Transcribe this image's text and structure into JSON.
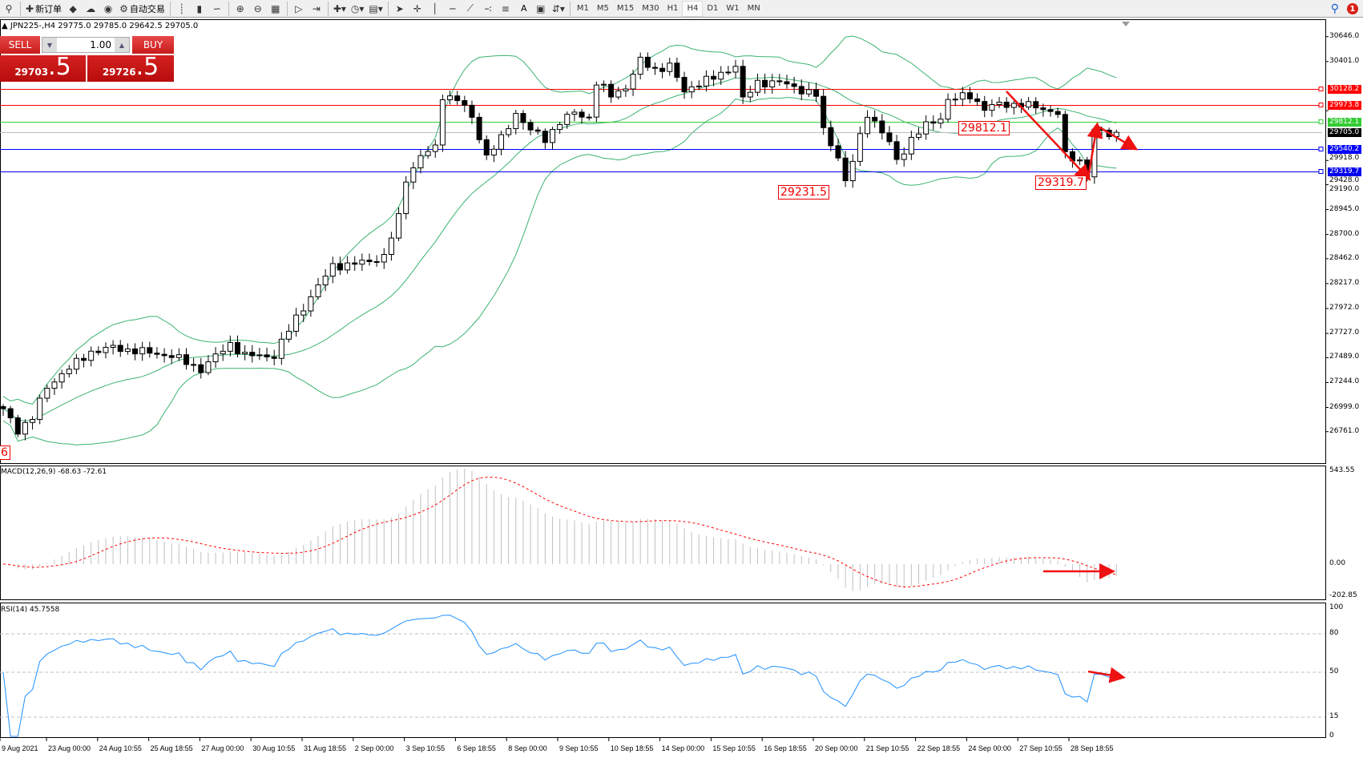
{
  "toolbar": {
    "items": [
      {
        "icon": "magnifier-icon"
      },
      {
        "icon": "new-order-icon",
        "label": "新订单"
      },
      {
        "icon": "market-watch-icon"
      },
      {
        "icon": "navigator-icon"
      },
      {
        "icon": "signal-icon"
      },
      {
        "icon": "auto-trading-icon",
        "label": "自动交易"
      },
      {
        "icon": "bar-chart-icon"
      },
      {
        "icon": "candlestick-icon"
      },
      {
        "icon": "line-chart-icon"
      },
      {
        "icon": "zoom-in-icon"
      },
      {
        "icon": "zoom-out-icon"
      },
      {
        "icon": "tile-windows-icon"
      },
      {
        "icon": "auto-scroll-icon"
      },
      {
        "icon": "chart-shift-icon"
      },
      {
        "icon": "indicators-icon"
      },
      {
        "icon": "periods-icon"
      },
      {
        "icon": "templates-icon"
      },
      {
        "icon": "cursor-icon"
      },
      {
        "icon": "crosshair-icon"
      },
      {
        "icon": "vertical-line-icon"
      },
      {
        "icon": "horizontal-line-icon"
      },
      {
        "icon": "trendline-icon"
      },
      {
        "icon": "equidistant-channel-icon"
      },
      {
        "icon": "fibonacci-icon"
      },
      {
        "icon": "text-icon",
        "label": "A"
      },
      {
        "icon": "text-label-icon"
      },
      {
        "icon": "arrows-icon"
      }
    ],
    "timeframes": [
      "M1",
      "M5",
      "M15",
      "M30",
      "H1",
      "H4",
      "D1",
      "W1",
      "MN"
    ],
    "selected_timeframe": "H4",
    "notification_count": "1"
  },
  "chart": {
    "title": "JPN225-,H4  29775.0 29785.0 29642.5 29705.0",
    "sell_label": "SELL",
    "buy_label": "BUY",
    "lot": "1.00",
    "sell_price_main": "29703",
    "sell_price_big": ".5",
    "buy_price_main": "29726",
    "buy_price_big": ".5",
    "annotations": [
      "29812.1",
      "29231.5",
      "29319.7",
      "6"
    ],
    "price_ticks": [
      "30646.0",
      "30401.0",
      "29918.0",
      "29428.0",
      "29190.0",
      "28945.0",
      "28700.0",
      "28462.0",
      "28217.0",
      "27972.0",
      "27727.0",
      "27489.0",
      "27244.0",
      "26999.0",
      "26761.0"
    ],
    "levels": [
      {
        "price": 30128.2,
        "label": "30128.2",
        "color": "#ff0000"
      },
      {
        "price": 29973.8,
        "label": "29973.8",
        "color": "#ff0000"
      },
      {
        "price": 29812.1,
        "label": "29812.1",
        "color": "#33cc33"
      },
      {
        "price": 29705.0,
        "label": "29705.0",
        "color": "#000000"
      },
      {
        "price": 29540.2,
        "label": "29540.2",
        "color": "#0000ff"
      },
      {
        "price": 29319.7,
        "label": "29319.7",
        "color": "#0000ee"
      }
    ],
    "price_path": [
      [
        0,
        26987
      ],
      [
        2,
        26774
      ],
      [
        4,
        26900
      ],
      [
        6,
        27200
      ],
      [
        8,
        27330
      ],
      [
        12,
        27547
      ],
      [
        15,
        27586
      ],
      [
        19,
        27547
      ],
      [
        23,
        27508
      ],
      [
        27,
        27374
      ],
      [
        31,
        27628
      ],
      [
        33,
        27508
      ],
      [
        37,
        27508
      ],
      [
        39,
        27760
      ],
      [
        40,
        27885
      ],
      [
        43,
        28186
      ],
      [
        45,
        28397
      ],
      [
        47,
        28397
      ],
      [
        50,
        28441
      ],
      [
        52,
        28480
      ],
      [
        54,
        28870
      ],
      [
        55,
        29250
      ],
      [
        57,
        29470
      ],
      [
        59,
        29553
      ],
      [
        60,
        30068
      ],
      [
        62,
        30030
      ],
      [
        64,
        29852
      ],
      [
        66,
        29470
      ],
      [
        68,
        29638
      ],
      [
        70,
        29895
      ],
      [
        72,
        29724
      ],
      [
        74,
        29638
      ],
      [
        76,
        29808
      ],
      [
        78,
        29895
      ],
      [
        80,
        29852
      ],
      [
        81,
        30195
      ],
      [
        83,
        30068
      ],
      [
        85,
        30151
      ],
      [
        87,
        30407
      ],
      [
        89,
        30322
      ],
      [
        91,
        30360
      ],
      [
        93,
        30108
      ],
      [
        95,
        30195
      ],
      [
        97,
        30237
      ],
      [
        100,
        30365
      ],
      [
        101,
        30022
      ],
      [
        103,
        30195
      ],
      [
        106,
        30195
      ],
      [
        108,
        30151
      ],
      [
        111,
        30068
      ],
      [
        112,
        29722
      ],
      [
        114,
        29470
      ],
      [
        115,
        29210
      ],
      [
        116,
        29424
      ],
      [
        118,
        29895
      ],
      [
        119,
        29808
      ],
      [
        121,
        29596
      ],
      [
        122,
        29424
      ],
      [
        124,
        29638
      ],
      [
        126,
        29770
      ],
      [
        128,
        29852
      ],
      [
        129,
        30023
      ],
      [
        132,
        30068
      ],
      [
        134,
        29938
      ],
      [
        136,
        29980
      ],
      [
        139,
        29980
      ],
      [
        142,
        29938
      ],
      [
        144,
        29895
      ],
      [
        145,
        29470
      ],
      [
        147,
        29424
      ],
      [
        148,
        29296
      ],
      [
        149,
        29722
      ],
      [
        151,
        29680
      ],
      [
        152,
        29705
      ]
    ],
    "band_color": "#3cb371"
  },
  "macd": {
    "label": "MACD(12,26,9) -68.63 -72.61",
    "ticks": [
      "543.55",
      "0.00",
      "-202.85"
    ]
  },
  "rsi": {
    "label": "RSI(14) 45.7558",
    "ticks": [
      "100",
      "80",
      "50",
      "15",
      "0"
    ],
    "color": "#1e90ff"
  },
  "dates": [
    "9 Aug 2021",
    "23 Aug 00:00",
    "24 Aug 10:55",
    "25 Aug 18:55",
    "27 Aug 00:00",
    "30 Aug 10:55",
    "31 Aug 18:55",
    "2 Sep 00:00",
    "3 Sep 10:55",
    "6 Sep 18:55",
    "8 Sep 00:00",
    "9 Sep 10:55",
    "10 Sep 18:55",
    "14 Sep 00:00",
    "15 Sep 10:55",
    "16 Sep 18:55",
    "20 Sep 00:00",
    "21 Sep 10:55",
    "22 Sep 18:55",
    "24 Sep 00:00",
    "27 Sep 10:55",
    "28 Sep 18:55"
  ]
}
